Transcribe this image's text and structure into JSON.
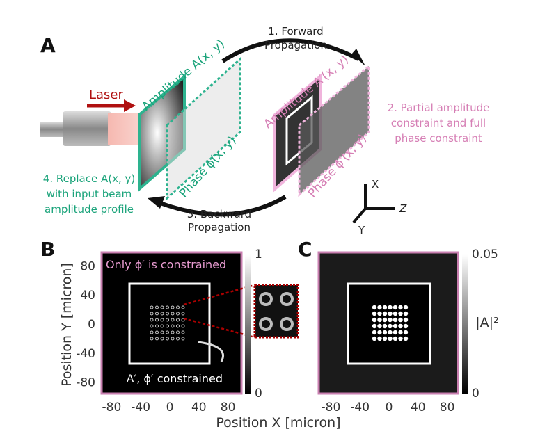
{
  "panel_a": {
    "label": "A",
    "forward": [
      "1. Forward",
      "Propagation"
    ],
    "laser": "Laser",
    "amplitude_in": "Amplitude A(x, y)",
    "phase_in": "Phase ϕ(x, y)",
    "amplitude_out": "Amplitude A′(x, y)",
    "phase_out": "Phase ϕ′(x, y)",
    "constraint": [
      "2. Partial amplitude",
      "constraint and full",
      "phase constraint"
    ],
    "replace": [
      "4. Replace A(x, y)",
      "with input beam",
      "amplitude profile"
    ],
    "backward": [
      "3. Backward",
      "Propagation"
    ],
    "axes": {
      "x": "X",
      "y": "Y",
      "z": "Z"
    }
  },
  "panel_b": {
    "label": "B",
    "xticks": [
      -80,
      -40,
      0,
      40,
      80
    ],
    "yticks": [
      80,
      40,
      0,
      -40,
      -80
    ],
    "x_label": "Position X [micron]",
    "y_label": "Position Y [micron]",
    "colorbar_ticks": [
      1,
      0
    ],
    "note_top": "Only ϕ′ is constrained",
    "note_bottom": "A′, ϕ′ constrained"
  },
  "panel_c": {
    "label": "C",
    "xticks": [
      -80,
      -40,
      0,
      40,
      80
    ],
    "colorbar_ticks": [
      0.05,
      0
    ],
    "colorbar_label": "|A|²"
  }
}
